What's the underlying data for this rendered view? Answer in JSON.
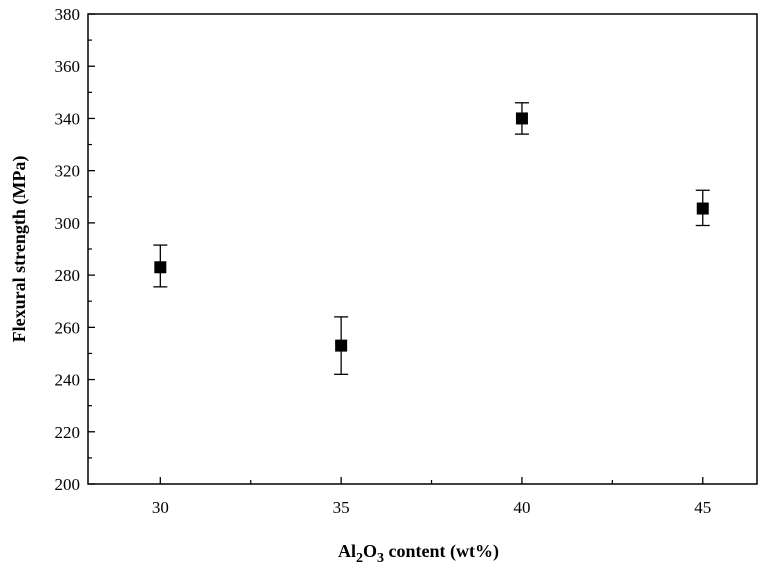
{
  "chart_data": {
    "type": "scatter",
    "title": "",
    "xlabel": "Al2O3 content (wt%)",
    "xlabel_parts": {
      "a": "Al",
      "sub1": "2",
      "b": "O",
      "sub2": "3",
      "c": " content (wt%)"
    },
    "ylabel": "Flexural strength (MPa)",
    "xlim": [
      28,
      46.5
    ],
    "ylim": [
      200,
      380
    ],
    "xticks": [
      30,
      35,
      40,
      45
    ],
    "xtick_labels": [
      "30",
      "35",
      "40",
      "45"
    ],
    "yticks": [
      200,
      220,
      240,
      260,
      280,
      300,
      320,
      340,
      360,
      380
    ],
    "ytick_labels": [
      "200",
      "220",
      "240",
      "260",
      "280",
      "300",
      "320",
      "340",
      "360",
      "380"
    ],
    "grid": false,
    "marker": "square",
    "marker_color": "#000000",
    "series": [
      {
        "x": [
          30,
          35,
          40,
          45
        ],
        "y": [
          283,
          253,
          340,
          305.5
        ],
        "yerr_low": [
          275.5,
          242,
          334,
          299
        ],
        "yerr_high": [
          291.5,
          264,
          346,
          312.5
        ]
      }
    ]
  }
}
